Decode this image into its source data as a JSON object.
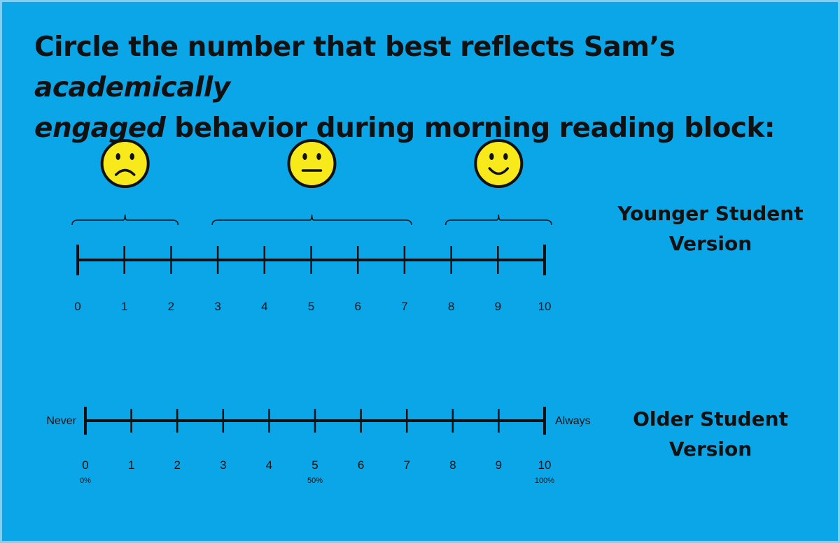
{
  "title": {
    "part1": "Circle the number that best reflects Sam’s ",
    "part2": "academically",
    "part3": "engaged",
    "part4": " behavior during morning reading block:"
  },
  "younger": {
    "label_line1": "Younger Student",
    "label_line2": "Version",
    "ticks": [
      "0",
      "1",
      "2",
      "3",
      "4",
      "5",
      "6",
      "7",
      "8",
      "9",
      "10"
    ],
    "faces": [
      {
        "name": "sad",
        "covers": [
          0,
          2
        ]
      },
      {
        "name": "neutral",
        "covers": [
          3,
          7
        ]
      },
      {
        "name": "happy",
        "covers": [
          8,
          10
        ]
      }
    ]
  },
  "older": {
    "label_line1": "Older Student",
    "label_line2": "Version",
    "left_anchor": "Never",
    "right_anchor": "Always",
    "ticks": [
      "0",
      "1",
      "2",
      "3",
      "4",
      "5",
      "6",
      "7",
      "8",
      "9",
      "10"
    ],
    "percent_labels": [
      {
        "at": 0,
        "text": "0%"
      },
      {
        "at": 5,
        "text": "50%"
      },
      {
        "at": 10,
        "text": "100%"
      }
    ]
  },
  "colors": {
    "background": "#0aa6e8",
    "face_fill": "#f8ea1a",
    "ink": "#111111"
  }
}
